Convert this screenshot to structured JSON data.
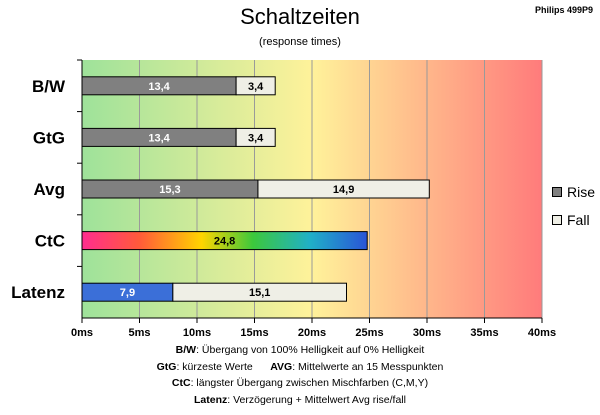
{
  "title": "Schaltzeiten",
  "subtitle": "(response times)",
  "brand": "Philips 499P9",
  "legend": [
    {
      "label": "Rise",
      "color": "#808080"
    },
    {
      "label": "Fall",
      "color": "#efefe6"
    }
  ],
  "notes": [
    {
      "k1": "B/W",
      "t1": ":  Übergang von 100% Helligkeit auf 0% Helligkeit",
      "k2": "",
      "t2": ""
    },
    {
      "k1": "GtG",
      "t1": ": kürzeste  Werte",
      "k2": "AVG",
      "t2": ": Mittelwerte  an 15 Messpunkten"
    },
    {
      "k1": "CtC",
      "t1": ": längster Übergang  zwischen Mischfarben (C,M,Y)",
      "k2": "",
      "t2": ""
    },
    {
      "k1": "Latenz",
      "t1": ": Verzögerung  + Mittelwert Avg rise/fall",
      "k2": "",
      "t2": ""
    }
  ],
  "chart_data": {
    "type": "bar",
    "orientation": "horizontal",
    "stacked": true,
    "categories": [
      "B/W",
      "GtG",
      "Avg",
      "CtC",
      "Latenz"
    ],
    "series": [
      {
        "name": "Rise",
        "values": [
          13.4,
          13.4,
          15.3,
          24.8,
          7.9
        ],
        "labels": [
          "13,4",
          "13,4",
          "15,3",
          "24,8",
          "7,9"
        ]
      },
      {
        "name": "Fall",
        "values": [
          3.4,
          3.4,
          14.9,
          null,
          15.1
        ],
        "labels": [
          "3,4",
          "3,4",
          "14,9",
          "",
          "15,1"
        ]
      }
    ],
    "xlim": [
      0,
      40
    ],
    "xticks": [
      0,
      5,
      10,
      15,
      20,
      25,
      30,
      35,
      40
    ],
    "xtick_labels": [
      "0ms",
      "5ms",
      "10ms",
      "15ms",
      "20ms",
      "25ms",
      "30ms",
      "35ms",
      "40ms"
    ],
    "xlabel": "",
    "ylabel": "",
    "grid": true,
    "legend_position": "right",
    "background": "gradient green-yellow-red",
    "colors": {
      "rise": "#808080",
      "fall": "#efefe6",
      "latenz_rise": "#3b6fd8",
      "ctc": "rainbow",
      "bg_start": "#9ee29a",
      "bg_mid": "#fff29a",
      "bg_end": "#ff7b7b"
    }
  }
}
